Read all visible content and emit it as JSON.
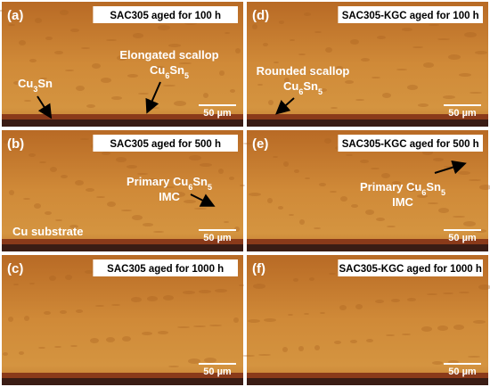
{
  "panels": [
    {
      "label": "(a)",
      "title": "SAC305 aged for 100 h",
      "scale_bar": "50 µm",
      "annotations": [
        {
          "lines": [
            [
              "Cu",
              "3",
              "Sn"
            ]
          ]
        },
        {
          "lines": [
            [
              "Elongated scallop"
            ],
            [
              "Cu",
              "6",
              "Sn",
              "5"
            ]
          ]
        }
      ]
    },
    {
      "label": "(b)",
      "title": "SAC305 aged for 500 h",
      "scale_bar": "50 µm",
      "annotations": [
        {
          "lines": [
            [
              "Primary Cu",
              "6",
              "Sn",
              "5"
            ],
            [
              "IMC"
            ]
          ]
        },
        {
          "lines": [
            [
              "Cu substrate"
            ]
          ]
        }
      ]
    },
    {
      "label": "(c)",
      "title": "SAC305 aged for 1000 h",
      "scale_bar": "50 µm",
      "annotations": []
    },
    {
      "label": "(d)",
      "title": "SAC305-KGC aged for 100 h",
      "scale_bar": "50 µm",
      "annotations": [
        {
          "lines": [
            [
              "Rounded scallop"
            ],
            [
              "Cu",
              "6",
              "Sn",
              "5"
            ]
          ]
        }
      ]
    },
    {
      "label": "(e)",
      "title": "SAC305-KGC aged for 500 h",
      "scale_bar": "50 µm",
      "annotations": [
        {
          "lines": [
            [
              "Primary Cu",
              "6",
              "Sn",
              "5"
            ],
            [
              "IMC"
            ]
          ]
        }
      ]
    },
    {
      "label": "(f)",
      "title": "SAC305-KGC aged for 1000 h",
      "scale_bar": "50 µm",
      "annotations": []
    }
  ]
}
